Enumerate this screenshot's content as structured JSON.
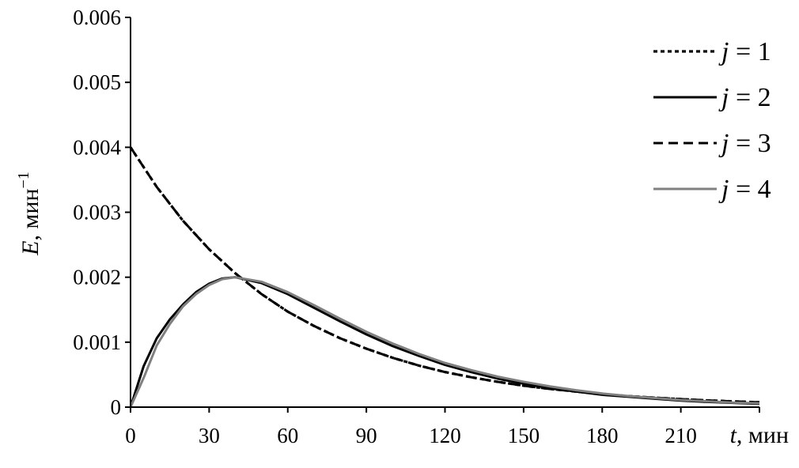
{
  "chart_data": {
    "type": "line",
    "xlabel_var": "t",
    "xlabel_unit": ", мин",
    "ylabel_var": "E",
    "ylabel_unit": ", мин",
    "ylabel_sup": "−1",
    "xlim": [
      0,
      240
    ],
    "ylim": [
      0,
      0.006
    ],
    "xticks": [
      "0",
      "30",
      "60",
      "90",
      "120",
      "150",
      "180",
      "210"
    ],
    "xtick_values": [
      0,
      30,
      60,
      90,
      120,
      150,
      180,
      210
    ],
    "yticks": [
      "0",
      "0.001",
      "0.002",
      "0.003",
      "0.004",
      "0.005",
      "0.006"
    ],
    "ytick_values": [
      0,
      0.001,
      0.002,
      0.003,
      0.004,
      0.005,
      0.006
    ],
    "legend_position": "top-right",
    "grid": false,
    "series": [
      {
        "var": "j",
        "eq": " = 1",
        "style": "dotted",
        "color": "#000000",
        "x": [
          0,
          10,
          20,
          30,
          40,
          50,
          60,
          70,
          80,
          90,
          100,
          110,
          120,
          130,
          140,
          150,
          160,
          170,
          180,
          190,
          200,
          210,
          220,
          230,
          240
        ],
        "y": [
          0.004,
          0.00339,
          0.00287,
          0.00243,
          0.00206,
          0.00174,
          0.00147,
          0.00125,
          0.00106,
          0.0009,
          0.00076,
          0.00064,
          0.00054,
          0.00046,
          0.00039,
          0.00033,
          0.00028,
          0.00024,
          0.0002,
          0.00017,
          0.000145,
          0.000123,
          0.000104,
          8.8e-05,
          7.5e-05
        ]
      },
      {
        "var": "j",
        "eq": " = 2",
        "style": "solid",
        "color": "#000000",
        "x": [
          0,
          5,
          10,
          15,
          20,
          25,
          30,
          35,
          40,
          50,
          60,
          70,
          80,
          90,
          100,
          110,
          120,
          130,
          140,
          150,
          160,
          170,
          180,
          190,
          200,
          210,
          220,
          230,
          240
        ],
        "y": [
          0,
          0.00063,
          0.00106,
          0.00135,
          0.00158,
          0.00177,
          0.0019,
          0.00198,
          0.002,
          0.00191,
          0.00174,
          0.00153,
          0.00132,
          0.00112,
          0.00094,
          0.00079,
          0.00065,
          0.00054,
          0.00044,
          0.00036,
          0.00029,
          0.00024,
          0.00019,
          0.00016,
          0.00013,
          0.0001,
          8e-05,
          6.5e-05,
          5e-05
        ]
      },
      {
        "var": "j",
        "eq": " = 3",
        "style": "dashed",
        "color": "#000000",
        "x": [
          0,
          10,
          20,
          30,
          40,
          50,
          60,
          70,
          80,
          90,
          100,
          110,
          120,
          130,
          140,
          150,
          160,
          170,
          180,
          190,
          200,
          210,
          220,
          230,
          240
        ],
        "y": [
          0.004,
          0.00339,
          0.00287,
          0.00243,
          0.00206,
          0.00174,
          0.00147,
          0.00125,
          0.00106,
          0.0009,
          0.00076,
          0.00064,
          0.00054,
          0.00046,
          0.00039,
          0.00033,
          0.00028,
          0.00024,
          0.0002,
          0.00017,
          0.000145,
          0.000123,
          0.000104,
          8.8e-05,
          7.5e-05
        ]
      },
      {
        "var": "j",
        "eq": " = 4",
        "style": "solid",
        "color": "#808080",
        "x": [
          0,
          5,
          10,
          15,
          20,
          25,
          30,
          35,
          40,
          50,
          60,
          70,
          80,
          90,
          100,
          110,
          120,
          130,
          140,
          150,
          160,
          170,
          180,
          190,
          200,
          210,
          220,
          230,
          240
        ],
        "y": [
          0,
          0.00045,
          0.00095,
          0.00128,
          0.00155,
          0.00174,
          0.00188,
          0.00197,
          0.002,
          0.00193,
          0.00177,
          0.00157,
          0.00136,
          0.00116,
          0.00098,
          0.00082,
          0.00068,
          0.00057,
          0.00047,
          0.00039,
          0.00032,
          0.00026,
          0.00021,
          0.00017,
          0.00014,
          0.00011,
          9e-05,
          7e-05,
          6e-05
        ]
      }
    ]
  }
}
